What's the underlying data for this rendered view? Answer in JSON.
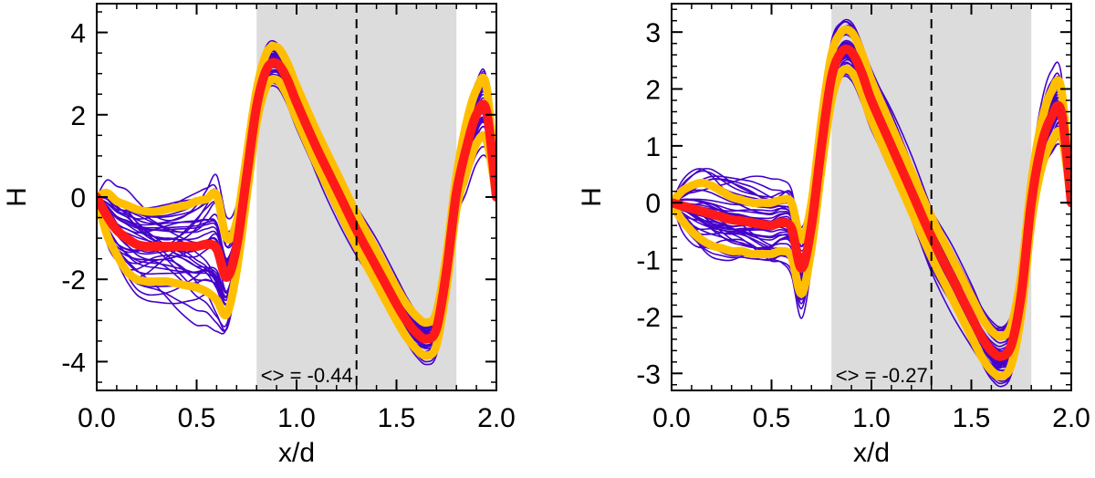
{
  "colors": {
    "ensemble": "#4400c8",
    "band": "#ffbf00",
    "mean": "#ff1a1a",
    "shade": "#dcdcdc",
    "axis": "#000000"
  },
  "chart_data": [
    {
      "type": "line",
      "xlabel": "x/d",
      "ylabel": "H",
      "xlim": [
        0.0,
        2.0
      ],
      "ylim": [
        -4.7,
        4.7
      ],
      "xticks": [
        "0.0",
        "0.5",
        "1.0",
        "1.5",
        "2.0"
      ],
      "yticks": [
        "-4",
        "-2",
        "0",
        "2",
        "4"
      ],
      "shaded_region": [
        0.8,
        1.8
      ],
      "dashed_line_x": 1.3,
      "annotation": "<> = -0.44",
      "mean": {
        "name": "mean",
        "x": [
          0.0,
          0.05,
          0.1,
          0.15,
          0.2,
          0.25,
          0.3,
          0.35,
          0.4,
          0.45,
          0.5,
          0.55,
          0.6,
          0.65,
          0.7,
          0.75,
          0.8,
          0.85,
          0.9,
          0.95,
          1.0,
          1.1,
          1.2,
          1.3,
          1.4,
          1.5,
          1.55,
          1.6,
          1.65,
          1.7,
          1.75,
          1.8,
          1.85,
          1.9,
          1.95,
          2.0
        ],
        "y": [
          0.0,
          -0.45,
          -0.8,
          -1.0,
          -1.15,
          -1.2,
          -1.2,
          -1.2,
          -1.2,
          -1.2,
          -1.2,
          -1.15,
          -1.25,
          -1.95,
          -1.2,
          0.5,
          2.2,
          3.1,
          3.25,
          2.9,
          2.3,
          1.2,
          0.2,
          -0.8,
          -1.7,
          -2.6,
          -3.0,
          -3.3,
          -3.45,
          -3.2,
          -1.8,
          0.1,
          1.2,
          2.0,
          2.1,
          0.0
        ]
      },
      "band_upper": [
        0.0,
        0.1,
        -0.1,
        -0.2,
        -0.3,
        -0.35,
        -0.35,
        -0.3,
        -0.25,
        -0.2,
        -0.1,
        -0.05,
        0.05,
        -1.0,
        -0.6,
        1.0,
        2.6,
        3.5,
        3.65,
        3.3,
        2.7,
        1.6,
        0.6,
        -0.4,
        -1.3,
        -2.2,
        -2.6,
        -2.9,
        -3.05,
        -2.8,
        -1.4,
        0.5,
        1.8,
        2.6,
        2.7,
        0.0
      ],
      "band_lower": [
        0.0,
        -0.9,
        -1.4,
        -1.8,
        -2.0,
        -2.05,
        -2.05,
        -2.05,
        -2.1,
        -2.15,
        -2.2,
        -2.3,
        -2.5,
        -2.85,
        -1.8,
        0.0,
        1.8,
        2.7,
        2.85,
        2.5,
        1.9,
        0.8,
        -0.2,
        -1.2,
        -2.1,
        -3.0,
        -3.4,
        -3.7,
        -3.85,
        -3.6,
        -2.2,
        -0.3,
        0.6,
        1.3,
        1.4,
        0.0
      ],
      "ensemble_count": 40
    },
    {
      "type": "line",
      "xlabel": "x/d",
      "ylabel": "H",
      "xlim": [
        0.0,
        2.0
      ],
      "ylim": [
        -3.3,
        3.5
      ],
      "xticks": [
        "0.0",
        "0.5",
        "1.0",
        "1.5",
        "2.0"
      ],
      "yticks": [
        "-3",
        "-2",
        "-1",
        "0",
        "1",
        "2",
        "3"
      ],
      "shaded_region": [
        0.8,
        1.8
      ],
      "dashed_line_x": 1.3,
      "annotation": "<> = -0.27",
      "mean": {
        "name": "mean",
        "x": [
          0.0,
          0.05,
          0.1,
          0.15,
          0.2,
          0.25,
          0.3,
          0.35,
          0.4,
          0.45,
          0.5,
          0.55,
          0.6,
          0.65,
          0.7,
          0.75,
          0.8,
          0.85,
          0.9,
          0.95,
          1.0,
          1.1,
          1.2,
          1.3,
          1.4,
          1.5,
          1.55,
          1.6,
          1.65,
          1.7,
          1.75,
          1.8,
          1.85,
          1.9,
          1.95,
          2.0
        ],
        "y": [
          0.0,
          -0.05,
          -0.1,
          -0.15,
          -0.2,
          -0.25,
          -0.3,
          -0.32,
          -0.35,
          -0.38,
          -0.4,
          -0.35,
          -0.45,
          -1.15,
          -0.4,
          1.0,
          2.2,
          2.65,
          2.65,
          2.3,
          1.8,
          1.0,
          0.2,
          -0.6,
          -1.3,
          -2.0,
          -2.35,
          -2.6,
          -2.7,
          -2.5,
          -1.6,
          0.0,
          1.0,
          1.5,
          1.6,
          0.0
        ]
      },
      "band_upper": [
        0.0,
        0.2,
        0.3,
        0.35,
        0.3,
        0.2,
        0.1,
        0.05,
        0.0,
        0.0,
        0.0,
        0.05,
        0.0,
        -0.65,
        0.0,
        1.45,
        2.6,
        3.0,
        3.0,
        2.65,
        2.15,
        1.35,
        0.55,
        -0.25,
        -0.95,
        -1.65,
        -2.0,
        -2.25,
        -2.35,
        -2.15,
        -1.25,
        0.35,
        1.4,
        1.95,
        2.0,
        0.0
      ],
      "band_lower": [
        0.0,
        -0.3,
        -0.5,
        -0.65,
        -0.75,
        -0.8,
        -0.85,
        -0.85,
        -0.9,
        -0.9,
        -0.9,
        -0.85,
        -0.95,
        -1.6,
        -0.8,
        0.6,
        1.8,
        2.3,
        2.3,
        1.95,
        1.45,
        0.65,
        -0.15,
        -0.95,
        -1.65,
        -2.35,
        -2.7,
        -2.95,
        -3.05,
        -2.85,
        -1.95,
        -0.35,
        0.6,
        1.05,
        1.2,
        0.0
      ],
      "ensemble_count": 40
    }
  ]
}
